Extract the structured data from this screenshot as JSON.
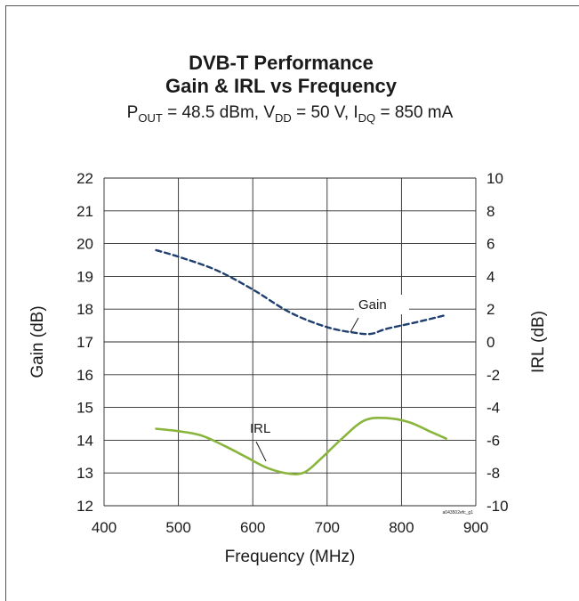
{
  "chart_data": {
    "type": "line",
    "title": "DVB-T Performance",
    "subtitle": "Gain & IRL vs Frequency",
    "conditions": {
      "pout_label": "P",
      "pout_sub": "OUT",
      "pout_value": " = 48.5 dBm, ",
      "vdd_label": "V",
      "vdd_sub": "DD",
      "vdd_value": " = 50 V, ",
      "idq_label": "I",
      "idq_sub": "DQ",
      "idq_value": " = 850 mA"
    },
    "xlabel": "Frequency (MHz)",
    "ylabel": "Gain  (dB)",
    "y2label": "IRL (dB)",
    "xlim": [
      400,
      900
    ],
    "ylim": [
      12,
      22
    ],
    "y2lim": [
      -10,
      10
    ],
    "x_ticks": [
      "400",
      "500",
      "600",
      "700",
      "800",
      "900"
    ],
    "y_ticks": [
      "12",
      "13",
      "14",
      "15",
      "16",
      "17",
      "18",
      "19",
      "20",
      "21",
      "22"
    ],
    "y2_ticks": [
      "-10",
      "-8",
      "-6",
      "-4",
      "-2",
      "0",
      "2",
      "4",
      "6",
      "8",
      "10"
    ],
    "grid": true,
    "figure_code": "a043502efc_g1",
    "series": [
      {
        "name": "Gain",
        "axis": "left",
        "color": "#1f3f6e",
        "style": "dashed",
        "x": [
          470,
          500,
          550,
          600,
          650,
          700,
          740,
          760,
          780,
          820,
          860
        ],
        "y": [
          19.8,
          19.6,
          19.2,
          18.6,
          17.9,
          17.45,
          17.27,
          17.25,
          17.4,
          17.6,
          17.82
        ]
      },
      {
        "name": "IRL",
        "axis": "right",
        "color": "#8ab53c",
        "style": "solid",
        "x": [
          470,
          500,
          530,
          560,
          590,
          620,
          650,
          670,
          690,
          720,
          750,
          780,
          810,
          840,
          860
        ],
        "y": [
          -5.3,
          -5.45,
          -5.7,
          -6.3,
          -7.0,
          -7.7,
          -8.05,
          -7.95,
          -7.2,
          -5.9,
          -4.8,
          -4.65,
          -4.9,
          -5.5,
          -5.9
        ]
      }
    ],
    "annotations": [
      "Gain",
      "IRL"
    ]
  }
}
